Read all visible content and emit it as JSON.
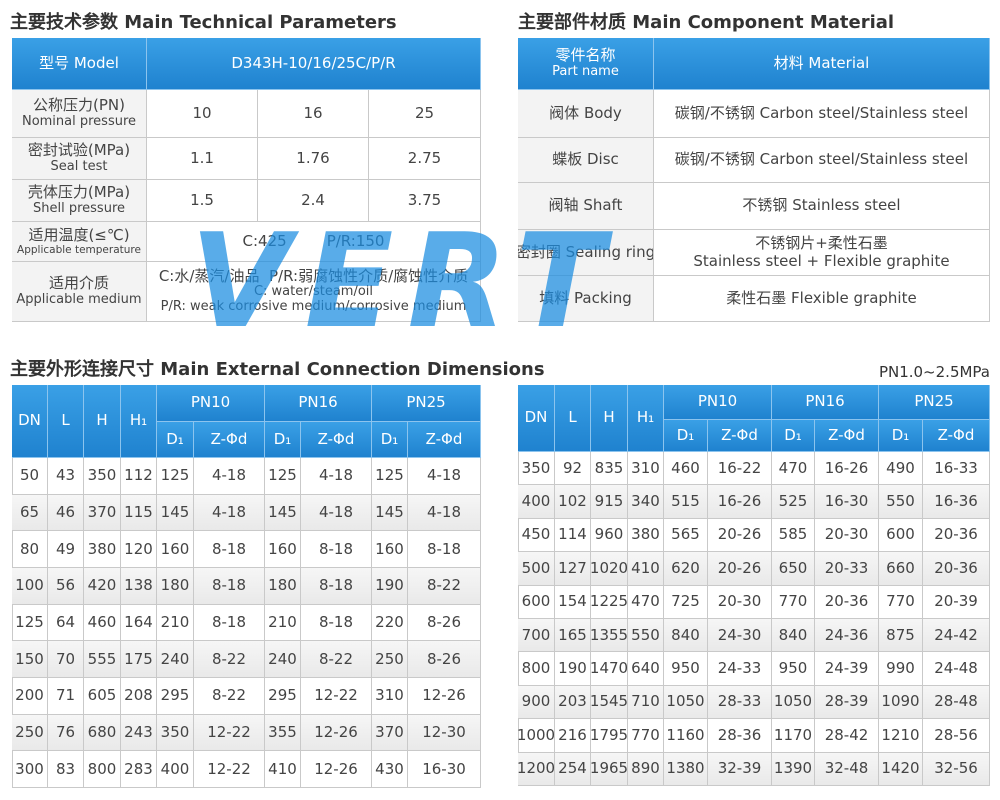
{
  "technical": {
    "title": "主要技术参数 Main Technical Parameters",
    "header": {
      "label": "型号 Model",
      "value": "D343H-10/16/25C/P/R"
    },
    "rows": [
      {
        "label": [
          "公称压力(PN)",
          "Nominal pressure"
        ],
        "values": [
          10,
          16,
          25
        ]
      },
      {
        "label": [
          "密封试验(MPa)",
          "Seal test"
        ],
        "values": [
          1.1,
          1.76,
          2.75
        ]
      },
      {
        "label": [
          "壳体压力(MPa)",
          "Shell pressure"
        ],
        "values": [
          1.5,
          2.4,
          3.75
        ]
      },
      {
        "label": [
          "适用温度(≤℃)",
          "Applicable temperature"
        ],
        "values": [
          "C:425",
          "P/R:150"
        ]
      },
      {
        "label": [
          "适用介质",
          "Applicable medium"
        ],
        "values": [
          "C:水/蒸汽/油品  P/R:弱腐蚀性介质/腐蚀性介质",
          "C: water/steam/oil",
          "P/R: weak corrosive medium/corrosive medium"
        ]
      }
    ]
  },
  "materials": {
    "title": "主要部件材质 Main Component Material",
    "header": {
      "part": [
        "零件名称",
        "Part name"
      ],
      "material": "材料 Material"
    },
    "rows": [
      {
        "part": "阀体 Body",
        "material": [
          "碳钢/不锈钢 Carbon steel/Stainless steel"
        ]
      },
      {
        "part": "蝶板 Disc",
        "material": [
          "碳钢/不锈钢 Carbon steel/Stainless steel"
        ]
      },
      {
        "part": "阀轴 Shaft",
        "material": [
          "不锈钢 Stainless steel"
        ]
      },
      {
        "part": "密封圈 Sealing ring",
        "material": [
          "不锈钢片+柔性石墨",
          "Stainless steel + Flexible graphite"
        ]
      },
      {
        "part": "填料 Packing",
        "material": [
          "柔性石墨 Flexible graphite"
        ]
      }
    ]
  },
  "dimensions": {
    "title": "主要外形连接尺寸 Main External Connection Dimensions",
    "note": "PN1.0~2.5MPa",
    "headers": {
      "columns": [
        "DN",
        "L",
        "H",
        "H₁"
      ],
      "groups": [
        "PN10",
        "PN16",
        "PN25"
      ],
      "sub": [
        "D₁",
        "Z-Φd"
      ]
    },
    "tables": [
      {
        "rows": [
          [
            50,
            43,
            350,
            112,
            125,
            "4-18",
            125,
            "4-18",
            125,
            "4-18"
          ],
          [
            65,
            46,
            370,
            115,
            145,
            "4-18",
            145,
            "4-18",
            145,
            "4-18"
          ],
          [
            80,
            49,
            380,
            120,
            160,
            "8-18",
            160,
            "8-18",
            160,
            "8-18"
          ],
          [
            100,
            56,
            420,
            138,
            180,
            "8-18",
            180,
            "8-18",
            190,
            "8-22"
          ],
          [
            125,
            64,
            460,
            164,
            210,
            "8-18",
            210,
            "8-18",
            220,
            "8-26"
          ],
          [
            150,
            70,
            555,
            175,
            240,
            "8-22",
            240,
            "8-22",
            250,
            "8-26"
          ],
          [
            200,
            71,
            605,
            208,
            295,
            "8-22",
            295,
            "12-22",
            310,
            "12-26"
          ],
          [
            250,
            76,
            680,
            243,
            350,
            "12-22",
            355,
            "12-26",
            370,
            "12-30"
          ],
          [
            300,
            83,
            800,
            283,
            400,
            "12-22",
            410,
            "12-26",
            430,
            "16-30"
          ]
        ]
      },
      {
        "rows": [
          [
            350,
            92,
            835,
            310,
            460,
            "16-22",
            470,
            "16-26",
            490,
            "16-33"
          ],
          [
            400,
            102,
            915,
            340,
            515,
            "16-26",
            525,
            "16-30",
            550,
            "16-36"
          ],
          [
            450,
            114,
            960,
            380,
            565,
            "20-26",
            585,
            "20-30",
            600,
            "20-36"
          ],
          [
            500,
            127,
            1020,
            410,
            620,
            "20-26",
            650,
            "20-33",
            660,
            "20-36"
          ],
          [
            600,
            154,
            1225,
            470,
            725,
            "20-30",
            770,
            "20-36",
            770,
            "20-39"
          ],
          [
            700,
            165,
            1355,
            550,
            840,
            "24-30",
            840,
            "24-36",
            875,
            "24-42"
          ],
          [
            800,
            190,
            1470,
            640,
            950,
            "24-33",
            950,
            "24-39",
            990,
            "24-48"
          ],
          [
            900,
            203,
            1545,
            710,
            1050,
            "28-33",
            1050,
            "28-39",
            1090,
            "28-48"
          ],
          [
            1000,
            216,
            1795,
            770,
            1160,
            "28-36",
            1170,
            "28-42",
            1210,
            "28-56"
          ],
          [
            1200,
            254,
            1965,
            890,
            1380,
            "32-39",
            1390,
            "32-48",
            1420,
            "32-56"
          ]
        ]
      }
    ]
  },
  "watermark": "VERT"
}
